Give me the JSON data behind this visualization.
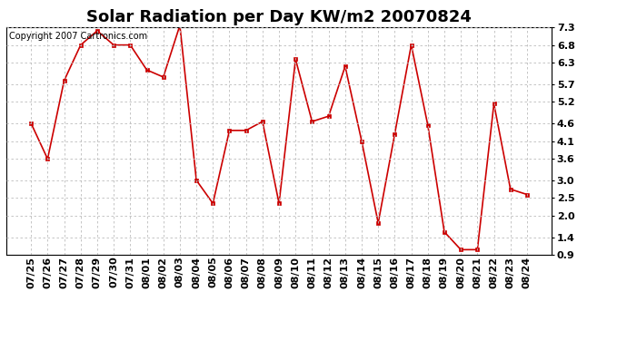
{
  "title": "Solar Radiation per Day KW/m2 20070824",
  "copyright_text": "Copyright 2007 Cartronics.com",
  "dates": [
    "07/25",
    "07/26",
    "07/27",
    "07/28",
    "07/29",
    "07/30",
    "07/31",
    "08/01",
    "08/02",
    "08/03",
    "08/04",
    "08/05",
    "08/06",
    "08/07",
    "08/08",
    "08/09",
    "08/10",
    "08/11",
    "08/12",
    "08/13",
    "08/14",
    "08/15",
    "08/16",
    "08/17",
    "08/18",
    "08/19",
    "08/20",
    "08/21",
    "08/22",
    "08/23",
    "08/24"
  ],
  "values": [
    4.6,
    3.6,
    5.8,
    6.8,
    7.2,
    6.8,
    6.8,
    6.1,
    5.9,
    7.35,
    3.0,
    2.35,
    4.4,
    4.4,
    4.65,
    2.35,
    6.4,
    4.65,
    4.8,
    6.2,
    4.1,
    1.8,
    4.3,
    6.8,
    4.55,
    1.55,
    1.05,
    1.05,
    5.15,
    2.75,
    2.6
  ],
  "line_color": "#cc0000",
  "marker": "s",
  "marker_size": 3,
  "ylim": [
    0.9,
    7.3
  ],
  "yticks": [
    0.9,
    1.4,
    2.0,
    2.5,
    3.0,
    3.6,
    4.1,
    4.6,
    5.2,
    5.7,
    6.3,
    6.8,
    7.3
  ],
  "grid_color": "#bbbbbb",
  "background_color": "#ffffff",
  "title_fontsize": 13,
  "tick_fontsize": 8,
  "copyright_fontsize": 7
}
